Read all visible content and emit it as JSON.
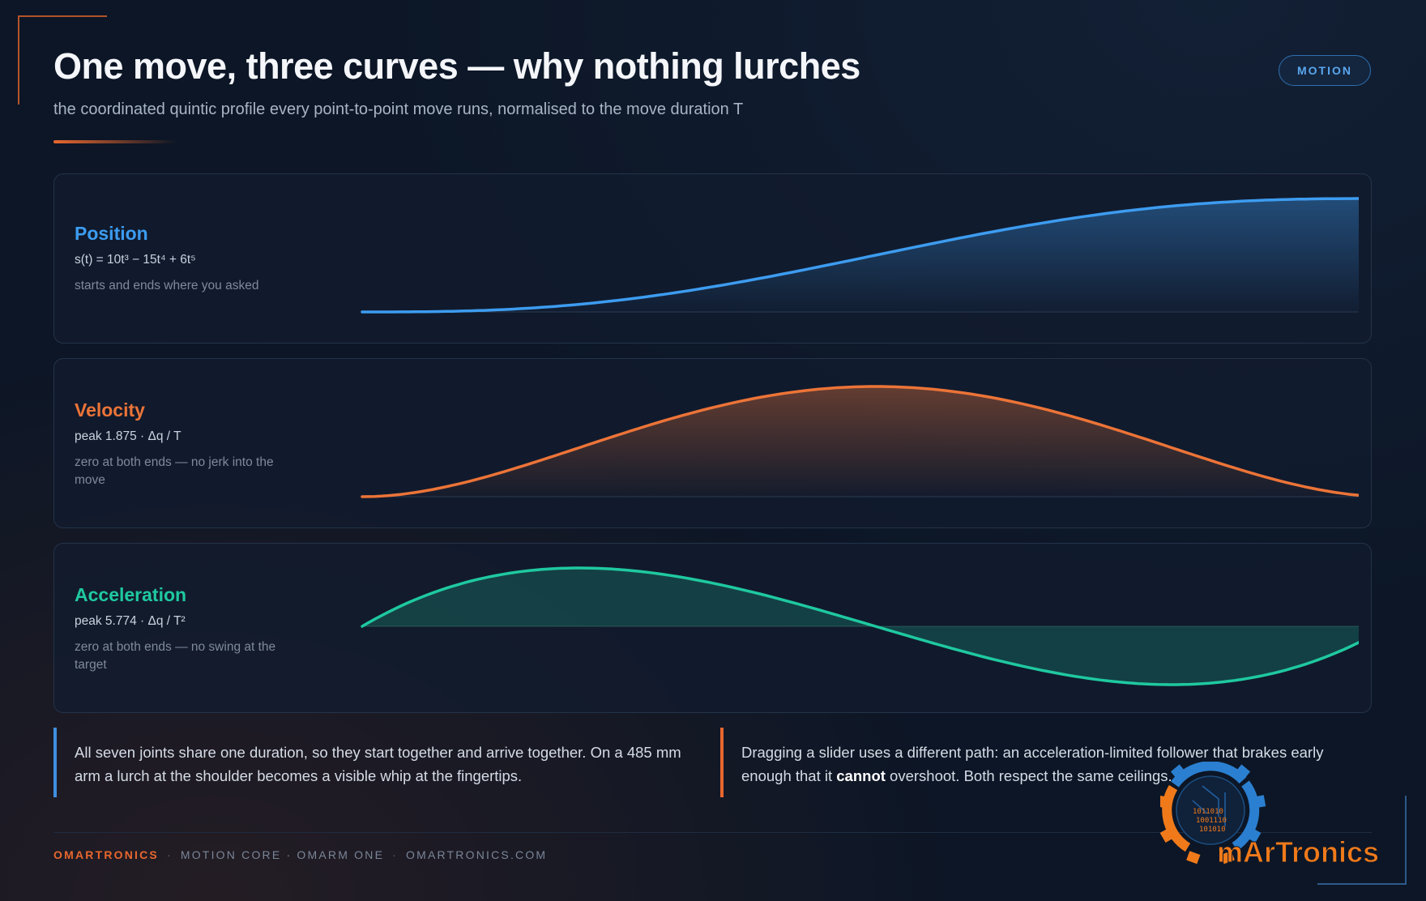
{
  "header": {
    "title": "One move, three curves — why nothing lurches",
    "subtitle": "the coordinated quintic profile every point-to-point move runs, normalised to the move duration T",
    "badge": "MOTION"
  },
  "panels": [
    {
      "name": "Position",
      "formula": "s(t) = 10t³ − 15t⁴ + 6t⁵",
      "note": "starts and ends where you asked",
      "color": "#3d9cf0"
    },
    {
      "name": "Velocity",
      "formula": "peak 1.875 · Δq / T",
      "note": "zero at both ends — no jerk into the move",
      "color": "#ec7438"
    },
    {
      "name": "Acceleration",
      "formula": "peak 5.774 · Δq / T²",
      "note": "zero at both ends — no swing at the target",
      "color": "#1fc9a0"
    }
  ],
  "chart_data": [
    {
      "type": "area",
      "series": [
        {
          "name": "Position",
          "function": "10t^3 - 15t^4 + 6t^5"
        }
      ],
      "x": [
        0,
        0.1,
        0.2,
        0.3,
        0.4,
        0.5,
        0.6,
        0.7,
        0.8,
        0.9,
        1
      ],
      "values": [
        0,
        0.0086,
        0.0579,
        0.1631,
        0.3174,
        0.5,
        0.6826,
        0.8369,
        0.9421,
        0.9914,
        1
      ],
      "ylim": [
        0,
        1
      ]
    },
    {
      "type": "area",
      "series": [
        {
          "name": "Velocity",
          "function": "30t^2 - 60t^3 + 30t^4"
        }
      ],
      "x": [
        0,
        0.1,
        0.2,
        0.3,
        0.4,
        0.5,
        0.6,
        0.7,
        0.8,
        0.9,
        1
      ],
      "values": [
        0,
        0.243,
        0.768,
        1.323,
        1.728,
        1.875,
        1.728,
        1.323,
        0.768,
        0.243,
        0
      ],
      "ylim": [
        0,
        1.875
      ]
    },
    {
      "type": "area",
      "series": [
        {
          "name": "Acceleration",
          "function": "60t - 180t^2 + 120t^3"
        }
      ],
      "x": [
        0,
        0.1,
        0.2,
        0.3,
        0.4,
        0.5,
        0.6,
        0.7,
        0.8,
        0.9,
        1
      ],
      "values": [
        0,
        4.32,
        5.76,
        5.04,
        2.88,
        0,
        -2.88,
        -5.04,
        -5.76,
        -4.32,
        0
      ],
      "ylim": [
        -5.774,
        5.774
      ]
    }
  ],
  "callouts": [
    {
      "text": "All seven joints share one duration, so they start together and arrive together. On a 485 mm arm a lurch at the shoulder becomes a visible whip at the fingertips."
    },
    {
      "text_before": "Dragging a slider uses a different path: an acceleration-limited follower that brakes early enough that it ",
      "emphasis": "cannot",
      "text_after": " overshoot. Both respect the same ceilings."
    }
  ],
  "footer": {
    "brand": "OMARTRONICS",
    "items": [
      "MOTION CORE · OMARM ONE",
      "OMARTRONICS.COM"
    ]
  },
  "logo": {
    "text": "mArTronics",
    "binary": [
      "1011010",
      "1001110",
      "101010"
    ],
    "colors": {
      "gear_orange": "#f07a1a",
      "gear_blue": "#2b7fd0",
      "text": "#f07a1a"
    }
  }
}
